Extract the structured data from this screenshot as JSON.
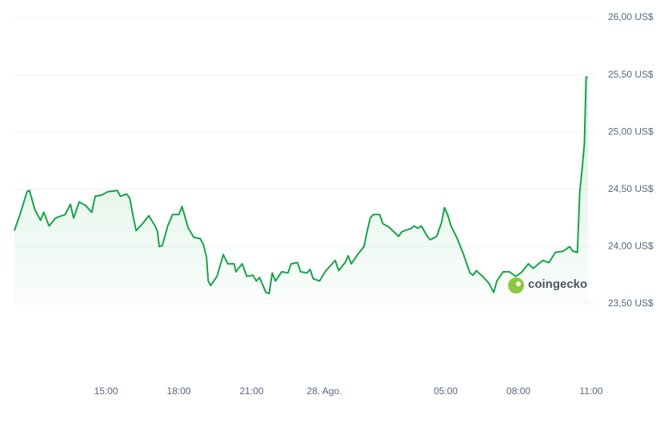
{
  "chart_data": {
    "type": "area",
    "watermark": "coingecko",
    "color": "#16a34a",
    "x": [
      11.22,
      11.48,
      11.74,
      11.84,
      12.07,
      12.3,
      12.43,
      12.65,
      12.92,
      13.31,
      13.53,
      13.66,
      13.89,
      14.15,
      14.41,
      14.55,
      14.81,
      15.07,
      15.46,
      15.59,
      15.85,
      15.98,
      16.11,
      16.24,
      16.5,
      16.76,
      17.02,
      17.12,
      17.19,
      17.32,
      17.54,
      17.74,
      18.0,
      18.13,
      18.39,
      18.62,
      18.88,
      19.01,
      19.14,
      19.21,
      19.31,
      19.57,
      19.83,
      20.02,
      20.28,
      20.35,
      20.61,
      20.8,
      21.06,
      21.19,
      21.33,
      21.59,
      21.72,
      21.85,
      21.98,
      22.24,
      22.5,
      22.63,
      22.89,
      23.02,
      23.28,
      23.41,
      23.54,
      23.8,
      24.06,
      24.32,
      24.45,
      24.59,
      24.85,
      24.98,
      25.11,
      25.37,
      25.63,
      25.76,
      25.89,
      26.02,
      26.28,
      26.41,
      26.67,
      27.06,
      27.19,
      27.58,
      27.71,
      27.84,
      28.0,
      28.24,
      28.37,
      28.63,
      28.83,
      28.95,
      29.08,
      29.22,
      29.48,
      29.74,
      30.0,
      30.13,
      30.26,
      30.52,
      30.78,
      30.98,
      31.11,
      31.37,
      31.63,
      31.89,
      32.15,
      32.41,
      32.61,
      33.0,
      33.26,
      33.52,
      33.85,
      34.11,
      34.24,
      34.43,
      34.53,
      34.63,
      34.72,
      34.79,
      34.86
    ],
    "values": [
      24.14,
      24.3,
      24.48,
      24.49,
      24.32,
      24.23,
      24.3,
      24.18,
      24.25,
      24.28,
      24.37,
      24.25,
      24.39,
      24.36,
      24.3,
      24.44,
      24.45,
      24.48,
      24.49,
      24.44,
      24.46,
      24.42,
      24.27,
      24.14,
      24.2,
      24.27,
      24.18,
      24.13,
      24.0,
      24.01,
      24.18,
      24.28,
      24.28,
      24.35,
      24.16,
      24.08,
      24.07,
      24.02,
      23.91,
      23.7,
      23.66,
      23.74,
      23.93,
      23.85,
      23.85,
      23.78,
      23.85,
      23.74,
      23.75,
      23.7,
      23.73,
      23.6,
      23.59,
      23.77,
      23.7,
      23.78,
      23.77,
      23.85,
      23.86,
      23.78,
      23.77,
      23.8,
      23.72,
      23.7,
      23.79,
      23.85,
      23.88,
      23.79,
      23.86,
      23.92,
      23.85,
      23.93,
      24.0,
      24.13,
      24.25,
      24.28,
      24.28,
      24.2,
      24.17,
      24.09,
      24.13,
      24.16,
      24.18,
      24.16,
      24.18,
      24.09,
      24.06,
      24.09,
      24.21,
      24.34,
      24.28,
      24.18,
      24.07,
      23.93,
      23.77,
      23.75,
      23.79,
      23.74,
      23.68,
      23.6,
      23.7,
      23.78,
      23.78,
      23.74,
      23.78,
      23.85,
      23.81,
      23.88,
      23.86,
      23.95,
      23.96,
      24.0,
      23.96,
      23.95,
      24.48,
      24.69,
      24.9,
      25.48,
      25.48
    ],
    "xlim": [
      11.22,
      35.0
    ],
    "ylim": [
      23.5,
      26
    ],
    "xticks": [
      {
        "value": 15,
        "label": "15:00"
      },
      {
        "value": 18,
        "label": "18:00"
      },
      {
        "value": 21,
        "label": "21:00"
      },
      {
        "value": 24,
        "label": "28. Ago."
      },
      {
        "value": 29,
        "label": "05:00"
      },
      {
        "value": 32,
        "label": "08:00"
      },
      {
        "value": 35,
        "label": "11:00"
      }
    ],
    "yticks": [
      {
        "value": 26,
        "label": "26,00 US$"
      },
      {
        "value": 25.5,
        "label": "25,50 US$"
      },
      {
        "value": 25,
        "label": "25,00 US$"
      },
      {
        "value": 24.5,
        "label": "24,50 US$"
      },
      {
        "value": 24,
        "label": "24,00 US$"
      },
      {
        "value": 23.5,
        "label": "23,50 US$"
      }
    ],
    "grid": true
  }
}
